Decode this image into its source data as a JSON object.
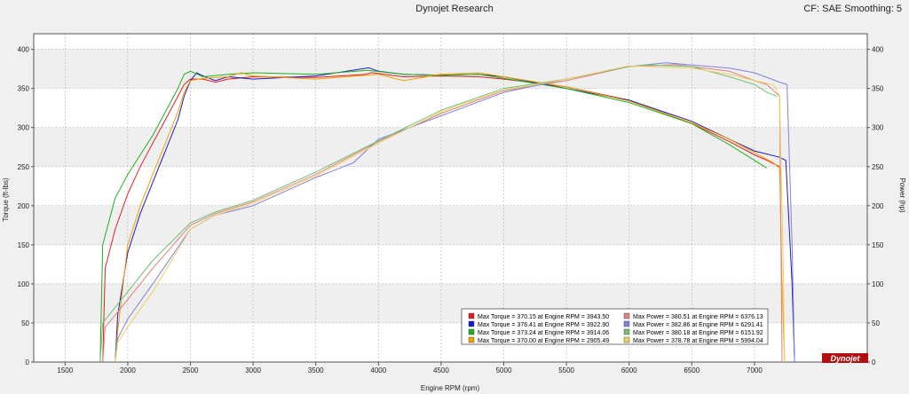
{
  "header": {
    "title": "Dynojet Research",
    "smoothing": "CF: SAE Smoothing: 5"
  },
  "logo_text": "Dynojet",
  "colors": {
    "run1": "#e02020",
    "run2": "#1a1ac0",
    "run3": "#20b020",
    "run4": "#f0a000",
    "run5": "#e08080",
    "run6": "#8080e0",
    "run7": "#70c070",
    "run8": "#f0d060"
  },
  "chart_data": {
    "type": "line",
    "title": "Dynojet Research",
    "xlabel": "Engine RPM (rpm)",
    "ylabel": "Torque (ft-lbs)",
    "y2label": "Power (hp)",
    "xlim": [
      1250,
      7900
    ],
    "ylim": [
      0,
      420
    ],
    "y2lim": [
      0,
      420
    ],
    "x_ticks": [
      1500,
      2000,
      2500,
      3000,
      3500,
      4000,
      4500,
      5000,
      5500,
      6000,
      6500,
      7000
    ],
    "y_ticks": [
      0,
      50,
      100,
      150,
      200,
      250,
      300,
      350,
      400
    ],
    "y2_ticks": [
      0,
      50,
      100,
      150,
      200,
      250,
      300,
      350,
      400
    ],
    "grid": true,
    "legend_position": "bottom-center",
    "legend": [
      "Max Torque = 370.15 at Engine RPM = 3943.50",
      "Max Torque = 376.41 at Engine RPM = 3922.90",
      "Max Torque = 373.24 at Engine RPM = 3914.06",
      "Max Torque = 370.00 at Engine RPM = 2905.49",
      "Max Power = 380.51 at Engine RPM = 6376.13",
      "Max Power = 382.86 at Engine RPM = 6291.41",
      "Max Power = 380.18 at Engine RPM = 6151.92",
      "Max Power = 378.78 at Engine RPM = 5994.04"
    ],
    "series": [
      {
        "kind": "torque",
        "x": [
          1800,
          1820,
          1900,
          2000,
          2100,
          2200,
          2300,
          2400,
          2450,
          2500,
          2600,
          2700,
          2800,
          3000,
          3500,
          3900,
          3943.5,
          4200,
          4500,
          4800,
          5000,
          5500,
          6000,
          6500,
          6800,
          7000,
          7100,
          7200
        ],
        "y": [
          0,
          120,
          170,
          215,
          250,
          280,
          310,
          340,
          355,
          362,
          362,
          358,
          362,
          365,
          364,
          368,
          370.15,
          365,
          366,
          365,
          362,
          352,
          335,
          305,
          282,
          265,
          258,
          250
        ]
      },
      {
        "kind": "torque",
        "x": [
          1900,
          1920,
          2000,
          2100,
          2200,
          2300,
          2400,
          2450,
          2500,
          2550,
          2600,
          2700,
          2800,
          3000,
          3500,
          3922.9,
          4000,
          4200,
          4500,
          4800,
          5000,
          5500,
          6000,
          6500,
          6800,
          7000,
          7200,
          7250,
          7300,
          7320
        ],
        "y": [
          0,
          60,
          140,
          190,
          230,
          270,
          310,
          340,
          360,
          370,
          366,
          360,
          365,
          362,
          366,
          376.41,
          372,
          368,
          367,
          368,
          365,
          350,
          335,
          308,
          285,
          270,
          262,
          258,
          100,
          0
        ]
      },
      {
        "kind": "torque",
        "x": [
          1780,
          1800,
          1900,
          2000,
          2100,
          2200,
          2300,
          2400,
          2450,
          2500,
          2600,
          2800,
          3000,
          3500,
          3914.06,
          4200,
          4500,
          4800,
          5000,
          5500,
          6000,
          6500,
          6800,
          7000,
          7100
        ],
        "y": [
          0,
          150,
          210,
          240,
          265,
          290,
          320,
          350,
          368,
          372,
          365,
          368,
          370,
          368,
          373.24,
          368,
          367,
          368,
          363,
          350,
          332,
          305,
          278,
          258,
          248
        ]
      },
      {
        "kind": "torque",
        "x": [
          1900,
          1920,
          2000,
          2100,
          2200,
          2300,
          2400,
          2450,
          2500,
          2600,
          2800,
          2905.49,
          3000,
          3500,
          4000,
          4200,
          4500,
          4800,
          5000,
          5500,
          6000,
          6500,
          6800,
          7000,
          7150,
          7200,
          7220,
          7240
        ],
        "y": [
          0,
          40,
          150,
          200,
          240,
          280,
          320,
          345,
          360,
          363,
          365,
          370,
          366,
          362,
          368,
          360,
          368,
          370,
          365,
          352,
          334,
          306,
          285,
          268,
          255,
          248,
          100,
          0
        ]
      },
      {
        "kind": "power",
        "x": [
          1800,
          1820,
          1900,
          2000,
          2200,
          2500,
          2700,
          3000,
          3500,
          4000,
          4500,
          5000,
          5500,
          6000,
          6376.13,
          6800,
          7000,
          7100,
          7200,
          7220
        ],
        "y": [
          0,
          45,
          60,
          80,
          120,
          175,
          190,
          205,
          240,
          282,
          318,
          347,
          360,
          378,
          380.51,
          372,
          360,
          355,
          340,
          0
        ]
      },
      {
        "kind": "power",
        "x": [
          1900,
          1920,
          2000,
          2200,
          2500,
          2700,
          3000,
          3500,
          3800,
          4000,
          4500,
          5000,
          5500,
          6000,
          6291.41,
          6800,
          7000,
          7200,
          7260,
          7300,
          7320
        ],
        "y": [
          0,
          30,
          55,
          100,
          170,
          188,
          200,
          236,
          255,
          285,
          315,
          345,
          362,
          378,
          382.86,
          376,
          370,
          358,
          355,
          150,
          0
        ]
      },
      {
        "kind": "power",
        "x": [
          1780,
          1800,
          1900,
          2000,
          2200,
          2500,
          2700,
          3000,
          3500,
          4000,
          4500,
          5000,
          5500,
          6000,
          6151.92,
          6500,
          6800,
          7000,
          7100,
          7180
        ],
        "y": [
          0,
          50,
          70,
          90,
          130,
          178,
          192,
          207,
          243,
          283,
          322,
          350,
          362,
          378,
          380.18,
          378,
          365,
          355,
          345,
          340
        ]
      },
      {
        "kind": "power",
        "x": [
          1900,
          1920,
          2000,
          2200,
          2500,
          2700,
          3000,
          3500,
          4000,
          4500,
          5000,
          5500,
          5994.04,
          6500,
          6800,
          7000,
          7150,
          7200,
          7230,
          7240
        ],
        "y": [
          0,
          25,
          45,
          90,
          170,
          188,
          203,
          238,
          280,
          320,
          348,
          362,
          378.78,
          376,
          368,
          360,
          355,
          340,
          120,
          0
        ]
      }
    ]
  }
}
